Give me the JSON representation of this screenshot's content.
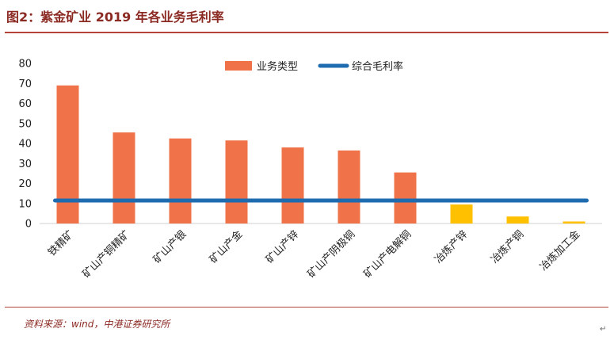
{
  "header": {
    "title": "图2：紫金矿业 2019 年各业务毛利率"
  },
  "footer": {
    "source": "资料来源：wind，中港证券研究所",
    "corner_mark": "↵"
  },
  "chart_data": {
    "type": "bar",
    "categories": [
      "铁精矿",
      "矿山产铜精矿",
      "矿山产银",
      "矿山产金",
      "矿山产锌",
      "矿山产阴极铜",
      "矿山产电解铜",
      "冶炼产锌",
      "冶炼产铜",
      "冶炼加工金"
    ],
    "series": [
      {
        "name": "业务类型",
        "values": [
          69,
          45.5,
          42.5,
          41.5,
          38,
          36.5,
          25.5,
          9.5,
          3.5,
          1
        ],
        "colors": [
          "#ef7248",
          "#ef7248",
          "#ef7248",
          "#ef7248",
          "#ef7248",
          "#ef7248",
          "#ef7248",
          "#ffc000",
          "#ffc000",
          "#ffc000"
        ]
      },
      {
        "name": "综合毛利率",
        "type": "line",
        "values": [
          11.5,
          11.5,
          11.5,
          11.5,
          11.5,
          11.5,
          11.5,
          11.5,
          11.5,
          11.5
        ],
        "color": "#1f6bb0"
      }
    ],
    "ylim": [
      0,
      80
    ],
    "yticks": [
      0,
      10,
      20,
      30,
      40,
      50,
      60,
      70,
      80
    ],
    "grid": false,
    "legend_position": "top-center"
  }
}
